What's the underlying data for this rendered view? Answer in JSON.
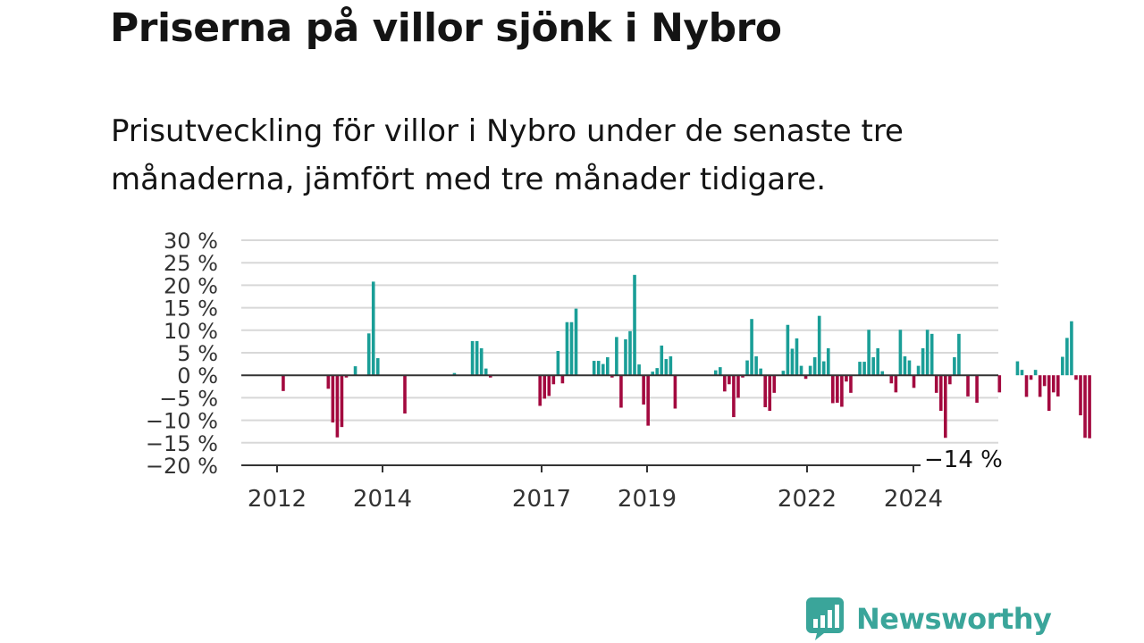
{
  "title": "Priserna på villor sjönk i Nybro",
  "subtitle": "Prisutveckling för villor i Nybro under de senaste tre månaderna, jämfört med tre månader tidigare.",
  "colors": {
    "positive": "#1a9e97",
    "negative": "#a3093f",
    "grid": "#d8d8d8",
    "axis": "#333333",
    "brand": "#3aa59a"
  },
  "brand": {
    "name": "Newsworthy",
    "icon": "chart-bubble-icon"
  },
  "chart_data": {
    "type": "bar",
    "ylim": [
      -20,
      30
    ],
    "yticks": [
      30,
      25,
      20,
      15,
      10,
      5,
      0,
      -5,
      -10,
      -15,
      -20
    ],
    "ytick_labels": [
      "30 %",
      "25 %",
      "20 %",
      "15 %",
      "10 %",
      "5 %",
      "0 %",
      "−5 %",
      "−10 %",
      "−15 %",
      "−20 %"
    ],
    "xtick_labels": [
      "2012",
      "2014",
      "2017",
      "2019",
      "2022",
      "2024"
    ],
    "grid": true,
    "last_value_label": "−14 %",
    "values": [
      0,
      0,
      0,
      -3.5,
      0,
      0,
      0,
      0,
      0,
      0,
      0,
      0,
      0,
      -3,
      -10.5,
      -13.8,
      -11.5,
      -0.5,
      0,
      2,
      0,
      0,
      9.3,
      20.8,
      3.8,
      0,
      0,
      0,
      0,
      0,
      -8.5,
      0,
      0,
      0,
      0,
      0,
      0,
      0,
      0,
      0,
      0,
      0.5,
      0,
      0,
      0,
      7.6,
      7.6,
      6,
      1.5,
      -0.5,
      0,
      0,
      0,
      0,
      0,
      0,
      0,
      0,
      0,
      0,
      -6.8,
      -5.2,
      -4.6,
      -2,
      5.4,
      -1.8,
      11.8,
      11.8,
      14.8,
      0,
      0,
      0,
      3.2,
      3.2,
      2.5,
      4,
      -0.5,
      8.5,
      -7.2,
      8,
      9.8,
      22.3,
      2.4,
      -6.5,
      -11.2,
      0.8,
      1.6,
      6.6,
      3.6,
      4.2,
      -7.4,
      0,
      0,
      0,
      0,
      0,
      0,
      0,
      0,
      1.1,
      1.8,
      -3.6,
      -2,
      -9.3,
      -5,
      -0.5,
      3.3,
      12.5,
      4.2,
      1.5,
      -7.1,
      -7.9,
      -3.9,
      0,
      1,
      11.2,
      5.9,
      8.2,
      2.1,
      -0.8,
      2.1,
      4,
      13.2,
      3.1,
      6,
      -6.2,
      -6.1,
      -7,
      -1.4,
      -3.9,
      0,
      3,
      3,
      10.1,
      4,
      6,
      0.9,
      0,
      -1.8,
      -3.8,
      10.1,
      4.2,
      3.3,
      -2.8,
      2.1,
      6,
      10.1,
      9.2,
      -3.9,
      -7.9,
      -13.9,
      -2,
      4,
      9.2,
      0,
      -4.7,
      0,
      -6.1,
      0,
      0,
      0,
      0,
      -3.8,
      0,
      0,
      0,
      3.1,
      1.2,
      -4.8,
      -1,
      1.2,
      -4.8,
      -2.4,
      -7.9,
      -3.8,
      -4.7,
      4.1,
      8.3,
      12,
      -1,
      -8.9,
      -13.9,
      -14
    ]
  }
}
